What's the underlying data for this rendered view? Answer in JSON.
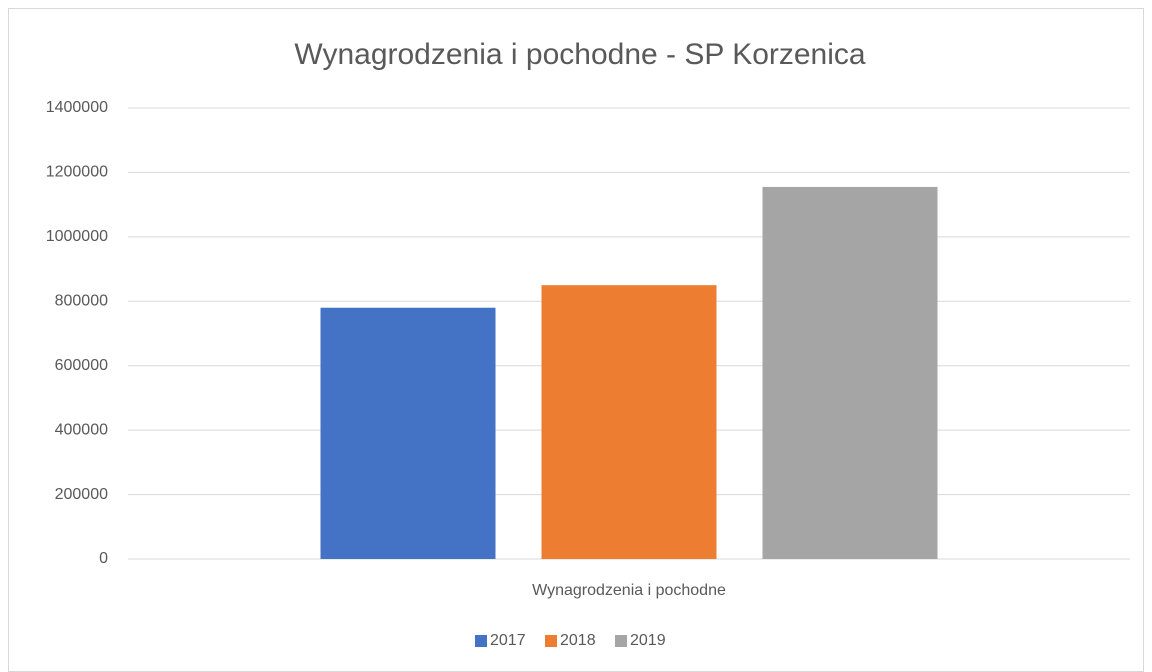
{
  "chart_data": {
    "type": "bar",
    "title": "Wynagrodzenia i pochodne - SP Korzenica",
    "categories": [
      "Wynagrodzenia i pochodne"
    ],
    "series": [
      {
        "name": "2017",
        "color": "#4472c4",
        "values": [
          780000
        ]
      },
      {
        "name": "2018",
        "color": "#ed7d31",
        "values": [
          850000
        ]
      },
      {
        "name": "2019",
        "color": "#a5a5a5",
        "values": [
          1155000
        ]
      }
    ],
    "ylim": [
      0,
      1400000
    ],
    "yticks": [
      0,
      200000,
      400000,
      600000,
      800000,
      1000000,
      1200000,
      1400000
    ],
    "grid": true,
    "legend": "bottom"
  }
}
